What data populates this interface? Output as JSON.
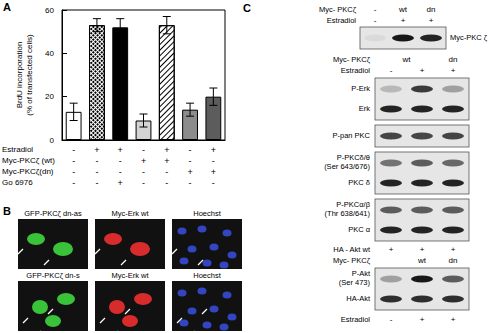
{
  "panel_labels": [
    "A",
    "B",
    "C"
  ],
  "chart_data": {
    "type": "bar",
    "ylabel": "BrdU incorporation (% of transfected cells)",
    "categories": [
      null,
      null,
      null,
      null,
      null,
      null,
      null
    ],
    "values": [
      13,
      53,
      52,
      9,
      53,
      14,
      20
    ],
    "errors": [
      4,
      3,
      4,
      3,
      4,
      3,
      4
    ],
    "colors": [
      "#ffffff",
      "#ffffff",
      "#000000",
      "#d4d4d4",
      "#ffffff",
      "#8c8c8c",
      "#5c5c5c"
    ],
    "ylim": [
      0,
      60
    ],
    "yticks": [
      0,
      20,
      40,
      60
    ],
    "grid": false,
    "conditions": [
      {
        "label": "Estradiol",
        "signs": [
          "-",
          "+",
          "+",
          "-",
          "+",
          "-",
          "+"
        ]
      },
      {
        "label": "Myc-PKCζ (wt)",
        "signs": [
          "-",
          "-",
          "-",
          "+",
          "+",
          "-",
          "-"
        ]
      },
      {
        "label": "Myc-PKCζ(dn)",
        "signs": [
          "-",
          "-",
          "-",
          "-",
          "-",
          "+",
          "+"
        ]
      },
      {
        "label": "Go 6976",
        "signs": [
          "-",
          "-",
          "+",
          "-",
          "-",
          "-",
          "-"
        ]
      }
    ]
  },
  "panel_b": {
    "rows": [
      [
        "GFP-PKCζ dn-as",
        "Myc-Erk wt",
        "Hoechst"
      ],
      [
        "GFP-PKCζ dn-s",
        "Myc-Erk wt",
        "Hoechst"
      ]
    ]
  },
  "panel_c": {
    "sections": [
      {
        "headers": [
          {
            "label": "Myc- PKCζ",
            "lanes": [
              {
                "text": "-",
                "span": 1
              },
              {
                "text": "wt",
                "span": 1
              },
              {
                "text": "dn",
                "span": 1
              }
            ]
          },
          {
            "label": "Estradiol",
            "lanes": [
              {
                "text": "-",
                "span": 1
              },
              {
                "text": "+",
                "span": 1
              },
              {
                "text": "+",
                "span": 1
              }
            ]
          }
        ],
        "blots": [
          [
            {
              "label": "Myc-PKC ζ",
              "intensity": [
                0.05,
                0.9,
                0.85
              ]
            }
          ]
        ],
        "footers": []
      },
      {
        "headers": [
          {
            "label": "Myc- PKCζ",
            "lanes": [
              {
                "text": "wt",
                "span": 2
              },
              {
                "text": "dn",
                "span": 1
              }
            ]
          },
          {
            "label": "Estradiol",
            "lanes": [
              {
                "text": "-",
                "span": 1
              },
              {
                "text": "+",
                "span": 1
              },
              {
                "text": "+",
                "span": 1
              }
            ]
          }
        ],
        "blots": [
          [
            {
              "label": "P-Erk",
              "intensity": [
                0.2,
                0.75,
                0.3
              ]
            },
            {
              "label": "Erk",
              "intensity": [
                0.85,
                0.85,
                0.85
              ]
            }
          ],
          [
            {
              "label": "P-pan PKC",
              "intensity": [
                0.7,
                0.7,
                0.7
              ]
            }
          ],
          [
            {
              "label": "P-PKCδ/θ (Ser 643/676)",
              "intensity": [
                0.5,
                0.6,
                0.55
              ]
            },
            {
              "label": "PKC δ",
              "intensity": [
                0.85,
                0.85,
                0.85
              ]
            }
          ],
          [
            {
              "label": "P-PKCα/β (Thr 638/641)",
              "intensity": [
                0.6,
                0.6,
                0.6
              ]
            },
            {
              "label": "PKC α",
              "intensity": [
                0.85,
                0.85,
                0.85
              ]
            }
          ]
        ],
        "footers": []
      },
      {
        "headers": [
          {
            "label": "HA - Akt wt",
            "lanes": [
              {
                "text": "+",
                "span": 1
              },
              {
                "text": "+",
                "span": 1
              },
              {
                "text": "+",
                "span": 1
              }
            ]
          },
          {
            "label": "Myc- PKCζ",
            "lanes": [
              {
                "text": null,
                "span": 1
              },
              {
                "text": "wt",
                "span": 1
              },
              {
                "text": "dn",
                "span": 1
              }
            ]
          }
        ],
        "blots": [
          [
            {
              "label": "P-Akt (Ser 473)",
              "intensity": [
                0.3,
                0.9,
                0.6
              ]
            },
            {
              "label": "HA-Akt",
              "intensity": [
                0.8,
                0.8,
                0.8
              ]
            }
          ]
        ],
        "footers": [
          {
            "label": "Estradiol",
            "lanes": [
              {
                "text": "-",
                "span": 1
              },
              {
                "text": "+",
                "span": 1
              },
              {
                "text": "+",
                "span": 1
              }
            ]
          }
        ]
      }
    ]
  }
}
